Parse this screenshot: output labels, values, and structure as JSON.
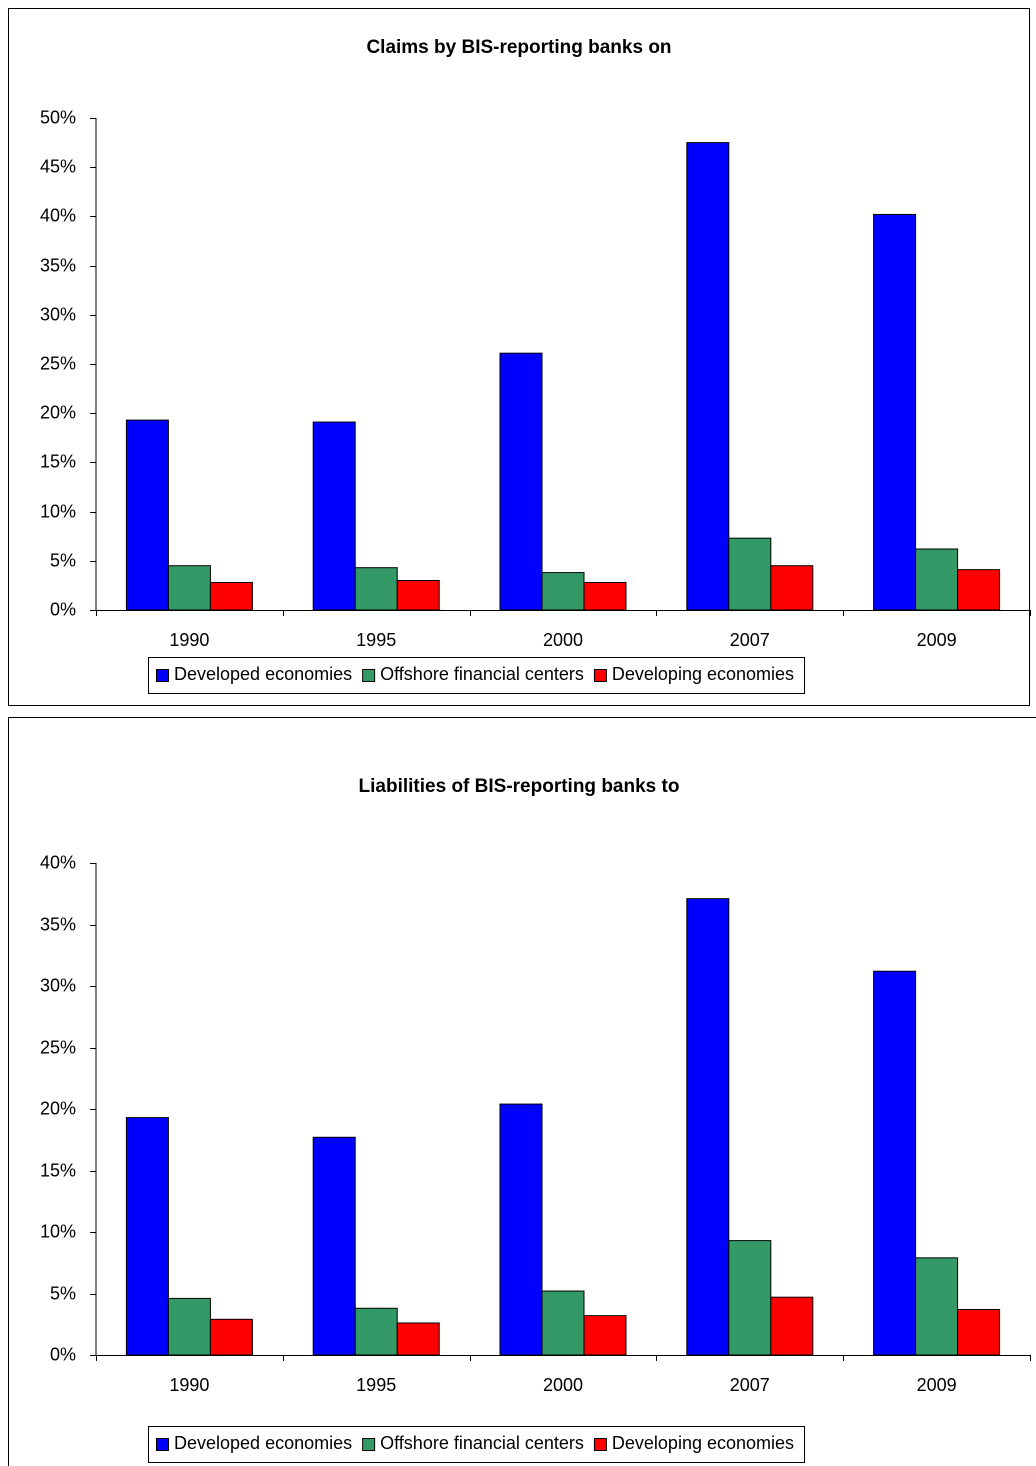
{
  "chart_data": [
    {
      "type": "bar",
      "title": "Claims by BIS-reporting banks on",
      "categories": [
        "1990",
        "1995",
        "2000",
        "2007",
        "2009"
      ],
      "series": [
        {
          "name": "Developed economies",
          "color": "#0000ff",
          "values": [
            19.3,
            19.1,
            26.1,
            47.5,
            40.2
          ]
        },
        {
          "name": "Offshore financial centers",
          "color": "#339966",
          "values": [
            4.5,
            4.3,
            3.8,
            7.3,
            6.2
          ]
        },
        {
          "name": "Developing economies",
          "color": "#ff0000",
          "values": [
            2.8,
            3.0,
            2.8,
            4.5,
            4.1
          ]
        }
      ],
      "ylim": [
        0,
        50
      ],
      "yticks": [
        {
          "value": 0,
          "label": "0%"
        },
        {
          "value": 5,
          "label": "5%"
        },
        {
          "value": 10,
          "label": "10%"
        },
        {
          "value": 15,
          "label": "15%"
        },
        {
          "value": 20,
          "label": "20%"
        },
        {
          "value": 25,
          "label": "25%"
        },
        {
          "value": 30,
          "label": "30%"
        },
        {
          "value": 35,
          "label": "35%"
        },
        {
          "value": 40,
          "label": "40%"
        },
        {
          "value": 45,
          "label": "45%"
        },
        {
          "value": 50,
          "label": "50%"
        }
      ],
      "legend": "bottom"
    },
    {
      "type": "bar",
      "title": "Liabilities of BIS-reporting banks to",
      "categories": [
        "1990",
        "1995",
        "2000",
        "2007",
        "2009"
      ],
      "series": [
        {
          "name": "Developed economies",
          "color": "#0000ff",
          "values": [
            19.3,
            17.7,
            20.4,
            37.1,
            31.2
          ]
        },
        {
          "name": "Offshore financial centers",
          "color": "#339966",
          "values": [
            4.6,
            3.8,
            5.2,
            9.3,
            7.9
          ]
        },
        {
          "name": "Developing economies",
          "color": "#ff0000",
          "values": [
            2.9,
            2.6,
            3.2,
            4.7,
            3.7
          ]
        }
      ],
      "ylim": [
        0,
        40
      ],
      "yticks": [
        {
          "value": 0,
          "label": "0%"
        },
        {
          "value": 5,
          "label": "5%"
        },
        {
          "value": 10,
          "label": "10%"
        },
        {
          "value": 15,
          "label": "15%"
        },
        {
          "value": 20,
          "label": "20%"
        },
        {
          "value": 25,
          "label": "25%"
        },
        {
          "value": 30,
          "label": "30%"
        },
        {
          "value": 35,
          "label": "35%"
        },
        {
          "value": 40,
          "label": "40%"
        }
      ],
      "legend": "bottom"
    }
  ]
}
